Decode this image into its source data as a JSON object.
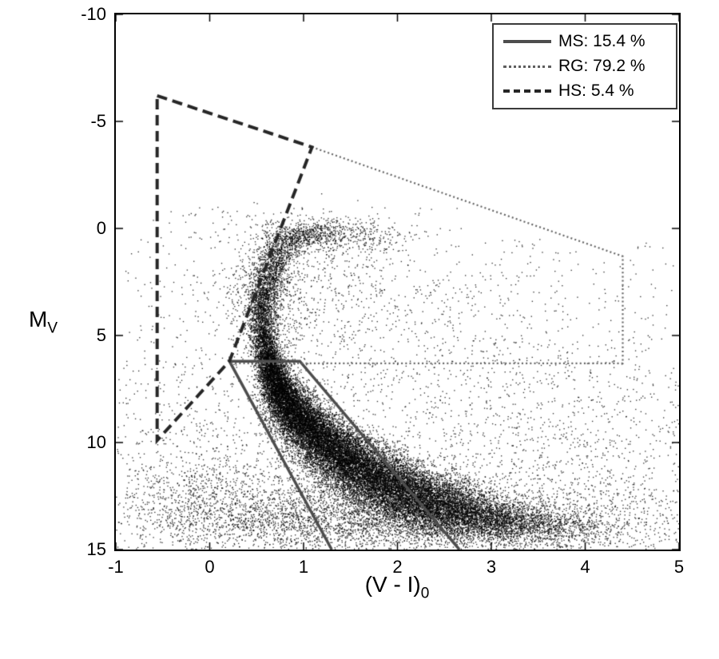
{
  "chart_data": {
    "type": "scatter",
    "title": "",
    "xlabel": {
      "base": "(V - I)",
      "sub": "0"
    },
    "ylabel": {
      "base": "M",
      "sub": "V"
    },
    "xlim": [
      -1,
      5
    ],
    "ylim_top": -10,
    "ylim_bottom": 15,
    "y_axis_reversed": true,
    "grid": false,
    "xticks": [
      "-1",
      "0",
      "1",
      "2",
      "3",
      "4",
      "5"
    ],
    "yticks": [
      "-10",
      "-5",
      "0",
      "5",
      "10",
      "15"
    ],
    "xtick_values": [
      -1,
      0,
      1,
      2,
      3,
      4,
      5
    ],
    "ytick_values": [
      -10,
      -5,
      0,
      5,
      10,
      15
    ],
    "point_color": "#000000",
    "legend": {
      "position": "top-right",
      "entries": [
        {
          "label": "MS: 15.4 %",
          "style": "solid",
          "color": "#4d4d4d",
          "line_width": 4
        },
        {
          "label": "RG: 79.2 %",
          "style": "dotted",
          "color": "#5e5e5e",
          "line_width": 3
        },
        {
          "label": "HS: 5.4 %",
          "style": "dashed",
          "color": "#262626",
          "line_width": 4
        }
      ]
    },
    "regions": [
      {
        "name": "MS",
        "style": "solid",
        "color": "#4d4d4d",
        "line_width": 3.5,
        "closed": false,
        "points": [
          [
            1.3,
            15
          ],
          [
            0.21,
            6.2
          ],
          [
            0.96,
            6.2
          ],
          [
            2.66,
            15
          ]
        ]
      },
      {
        "name": "RG",
        "style": "dotted",
        "color": "#636363",
        "line_width": 2.2,
        "closed": false,
        "points": [
          [
            1.09,
            -3.8
          ],
          [
            4.4,
            1.3
          ],
          [
            4.4,
            6.3
          ],
          [
            0.21,
            6.3
          ]
        ]
      },
      {
        "name": "HS",
        "style": "dashed",
        "color": "#262626",
        "line_width": 4,
        "closed": true,
        "points": [
          [
            -0.56,
            -6.2
          ],
          [
            1.09,
            -3.8
          ],
          [
            0.21,
            6.2
          ],
          [
            -0.56,
            9.9
          ]
        ]
      }
    ],
    "scatter_model": {
      "seed": 20240915,
      "point_size": 1.35,
      "alpha": 0.8,
      "gaussian_blobs": [
        [
          0.58,
          5.2,
          0.07,
          0.4,
          500
        ],
        [
          0.62,
          6.0,
          0.07,
          0.4,
          900
        ],
        [
          0.68,
          6.8,
          0.08,
          0.4,
          1300
        ],
        [
          0.76,
          7.6,
          0.1,
          0.4,
          1700
        ],
        [
          0.88,
          8.4,
          0.13,
          0.45,
          2000
        ],
        [
          1.04,
          9.2,
          0.16,
          0.45,
          2300
        ],
        [
          1.24,
          10.0,
          0.2,
          0.5,
          2500
        ],
        [
          1.48,
          10.8,
          0.24,
          0.5,
          2700
        ],
        [
          1.76,
          11.6,
          0.28,
          0.5,
          2800
        ],
        [
          2.08,
          12.3,
          0.32,
          0.5,
          2700
        ],
        [
          2.42,
          12.9,
          0.36,
          0.5,
          2300
        ],
        [
          2.76,
          13.4,
          0.4,
          0.45,
          1700
        ],
        [
          3.1,
          13.8,
          0.45,
          0.45,
          1000
        ],
        [
          3.45,
          14.1,
          0.5,
          0.4,
          500
        ],
        [
          1.5,
          13.4,
          0.9,
          0.8,
          1600
        ],
        [
          2.3,
          14.0,
          1.0,
          0.55,
          1200
        ],
        [
          0.45,
          13.2,
          0.7,
          1.0,
          700
        ],
        [
          3.9,
          13.6,
          0.7,
          0.7,
          350
        ],
        [
          0.56,
          4.4,
          0.07,
          0.45,
          450
        ],
        [
          0.56,
          3.6,
          0.07,
          0.45,
          380
        ],
        [
          0.6,
          2.8,
          0.08,
          0.45,
          330
        ],
        [
          0.65,
          2.1,
          0.09,
          0.45,
          300
        ],
        [
          0.71,
          1.4,
          0.1,
          0.4,
          280
        ],
        [
          0.8,
          0.8,
          0.12,
          0.35,
          260
        ],
        [
          0.95,
          0.35,
          0.18,
          0.3,
          280
        ],
        [
          1.2,
          0.2,
          0.3,
          0.3,
          350
        ],
        [
          1.55,
          0.5,
          0.3,
          0.4,
          180
        ],
        [
          0.62,
          3.6,
          0.22,
          1.3,
          600
        ],
        [
          0.9,
          1.8,
          0.5,
          1.2,
          300
        ],
        [
          1.8,
          3.8,
          0.9,
          1.8,
          320
        ],
        [
          2.8,
          6.0,
          1.0,
          1.6,
          220
        ],
        [
          3.5,
          10.8,
          0.8,
          2.0,
          450
        ],
        [
          4.2,
          12.8,
          0.5,
          1.3,
          180
        ],
        [
          -0.25,
          13.0,
          0.5,
          1.3,
          400
        ],
        [
          0.05,
          11.3,
          0.45,
          1.6,
          280
        ]
      ],
      "uniform_fields": [
        {
          "count": 1500,
          "x": [
            -1,
            5
          ],
          "y": [
            6,
            15
          ]
        },
        {
          "count": 420,
          "x": [
            -0.9,
            4.9
          ],
          "y": [
            0.5,
            6
          ]
        },
        {
          "count": 90,
          "x": [
            -0.6,
            2.4
          ],
          "y": [
            -1,
            0.5
          ]
        }
      ]
    }
  }
}
